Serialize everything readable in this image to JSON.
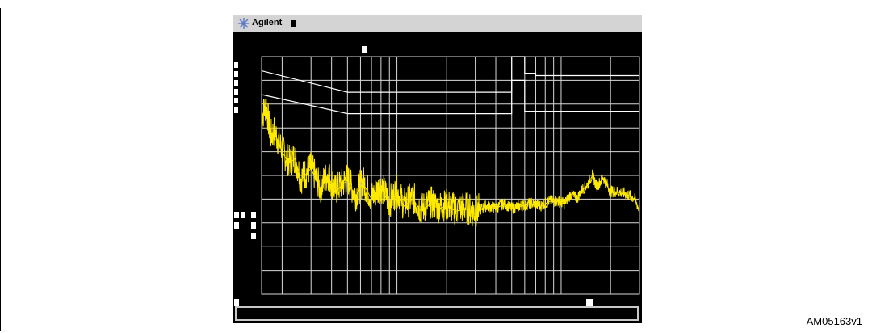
{
  "instrument": {
    "brand": "Agilent",
    "brand_icon": "starburst-icon",
    "colors": {
      "trace": "#ffea00",
      "limit": "#ffffff",
      "grid": "#d8d8d8",
      "screen": "#000000",
      "titlebar": "#d4d4d4"
    }
  },
  "figure_id": "AM05163v1",
  "chart_data": {
    "type": "line",
    "title": "",
    "xlabel": "",
    "ylabel": "",
    "x_scale": "log",
    "xlim": [
      150000,
      30000000
    ],
    "ylim": [
      0,
      100
    ],
    "grid": true,
    "series": [
      {
        "x": [
          150000,
          160000,
          170000,
          180000,
          200000,
          220000,
          240000,
          260000,
          300000,
          340000,
          380000,
          420000,
          500000,
          560000,
          620000,
          700000,
          800000,
          900000,
          1000000,
          1100000,
          1250000,
          1400000,
          1600000,
          1800000,
          2000000,
          2300000,
          2600000,
          3000000,
          3500000,
          4000000,
          4500000,
          5000000,
          5700000,
          6500000,
          7500000,
          8500000,
          9500000,
          10500000,
          11500000,
          12500000,
          13500000,
          14500000,
          15500000,
          16500000,
          18000000,
          20000000,
          22000000,
          25000000,
          28000000,
          30000000
        ],
        "values": [
          74,
          79,
          66,
          68,
          60,
          55,
          57,
          48,
          53,
          44,
          50,
          43,
          48,
          41,
          47,
          40,
          45,
          38,
          43,
          37,
          40,
          35,
          38,
          36,
          37,
          35,
          36,
          34,
          37,
          36,
          38,
          36,
          37,
          38,
          37,
          39,
          39,
          38,
          42,
          40,
          44,
          46,
          50,
          45,
          49,
          43,
          43,
          42,
          40,
          35
        ]
      }
    ],
    "limit_lines": [
      {
        "x": [
          150000,
          500000,
          500000,
          5000000,
          5000000,
          6000000,
          6000000,
          7000000,
          7000000,
          30000000
        ],
        "values": [
          94,
          85,
          85,
          85,
          100,
          100,
          93,
          93,
          92,
          92
        ]
      },
      {
        "x": [
          150000,
          500000,
          500000,
          5000000,
          5000000,
          6000000,
          6000000,
          7000000,
          7000000,
          30000000
        ],
        "values": [
          84,
          76,
          76,
          76,
          90,
          90,
          77,
          77,
          77,
          77
        ]
      }
    ]
  }
}
